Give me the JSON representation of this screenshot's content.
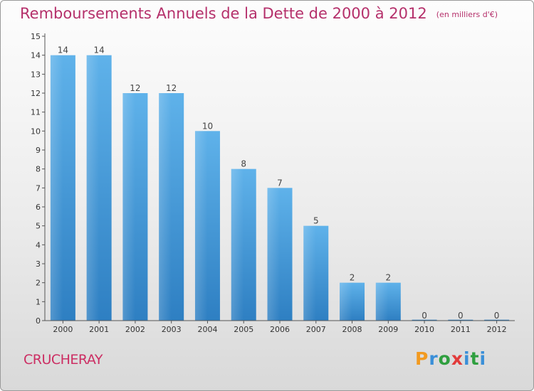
{
  "title": "Remboursements Annuels de la Dette de 2000 à 2012",
  "unit": "(en milliers d'€)",
  "town": "CRUCHERAY",
  "brand": [
    "P",
    "r",
    "o",
    "x",
    "i",
    "t",
    "i"
  ],
  "colors": {
    "title": "#b5306b",
    "bar_top": "#5fb2ea",
    "bar_bottom": "#2e7fc2",
    "brand": [
      "#f29a20",
      "#3a8fd8",
      "#2f9f3f",
      "#e23b3b",
      "#3a8fd8",
      "#2f9f3f",
      "#3a8fd8"
    ]
  },
  "chart_data": {
    "type": "bar",
    "categories": [
      "2000",
      "2001",
      "2002",
      "2003",
      "2004",
      "2005",
      "2006",
      "2007",
      "2008",
      "2009",
      "2010",
      "2011",
      "2012"
    ],
    "values": [
      14,
      14,
      12,
      12,
      10,
      8,
      7,
      5,
      2,
      2,
      0,
      0,
      0
    ],
    "data_labels": [
      "14",
      "14",
      "12",
      "12",
      "10",
      "8",
      "7",
      "5",
      "2",
      "2",
      "0",
      "0",
      "0"
    ],
    "yticks": [
      0,
      1,
      2,
      3,
      4,
      5,
      6,
      7,
      8,
      9,
      10,
      11,
      12,
      13,
      14,
      15
    ],
    "ytick_labels": [
      "0",
      "1",
      "2",
      "3",
      "4",
      "5",
      "6",
      "7",
      "8",
      "9",
      "10",
      "11",
      "12",
      "13",
      "14",
      "15"
    ],
    "ylim": [
      0,
      15
    ],
    "grid": false,
    "title": "Remboursements Annuels de la Dette de 2000 à 2012",
    "xlabel": "",
    "ylabel": ""
  }
}
